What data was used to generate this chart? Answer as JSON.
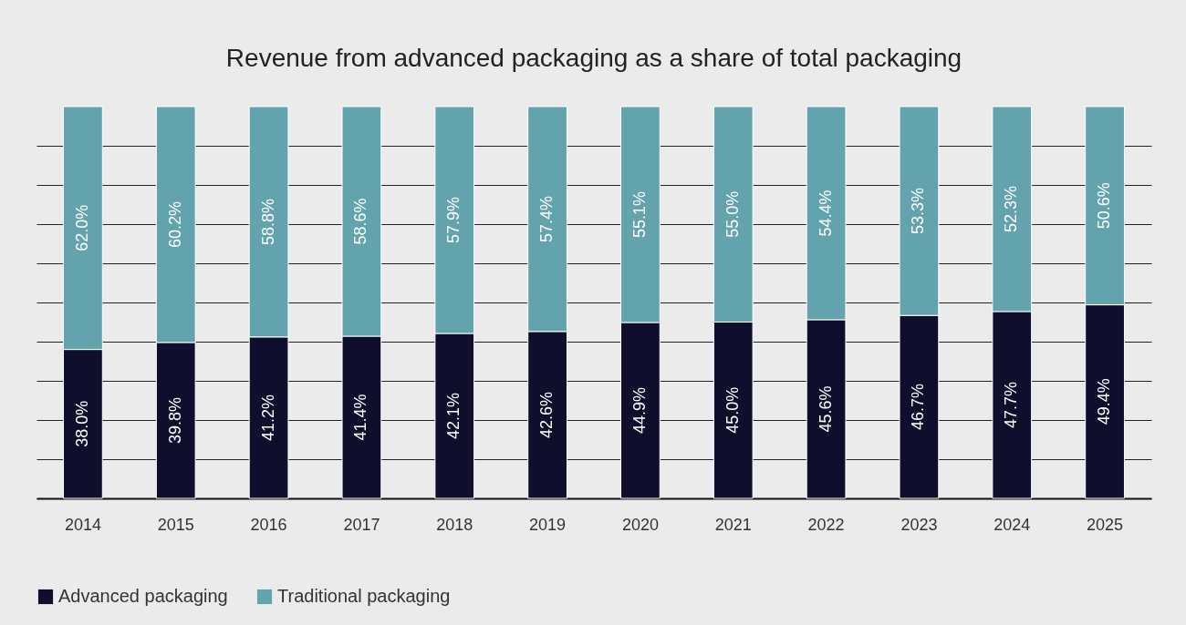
{
  "chart_data": {
    "type": "bar",
    "title": "Revenue from advanced packaging as a share of total packaging",
    "categories": [
      "2014",
      "2015",
      "2016",
      "2017",
      "2018",
      "2019",
      "2020",
      "2021",
      "2022",
      "2023",
      "2024",
      "2025"
    ],
    "stacked": true,
    "series": [
      {
        "name": "Advanced packaging",
        "color": "#0f0f2d",
        "values": [
          38.0,
          39.8,
          41.2,
          41.4,
          42.1,
          42.6,
          44.9,
          45.0,
          45.6,
          46.7,
          47.7,
          49.4
        ],
        "value_labels": [
          "38.0%",
          "39.8%",
          "41.2%",
          "41.4%",
          "42.1%",
          "42.6%",
          "44.9%",
          "45.0%",
          "45.6%",
          "46.7%",
          "47.7%",
          "49.4%"
        ]
      },
      {
        "name": "Traditional packaging",
        "color": "#62a3ad",
        "values": [
          62.0,
          60.2,
          58.8,
          58.6,
          57.9,
          57.4,
          55.1,
          55.0,
          54.4,
          53.3,
          52.3,
          50.6
        ],
        "value_labels": [
          "62.0%",
          "60.2%",
          "58.8%",
          "58.6%",
          "57.9%",
          "57.4%",
          "55.1%",
          "55.0%",
          "54.4%",
          "53.3%",
          "52.3%",
          "50.6%"
        ]
      }
    ],
    "ylim": [
      0,
      100
    ],
    "yticks": [
      0,
      {
        "value": 10,
        "label": null
      },
      {
        "value": 20,
        "label": null
      },
      {
        "value": 30,
        "label": null
      },
      {
        "value": 40,
        "label": null
      },
      {
        "value": 50,
        "label": null
      },
      {
        "value": 60,
        "label": null
      },
      {
        "value": 70,
        "label": null
      },
      {
        "value": 80,
        "label": null
      },
      {
        "value": 90,
        "label": null
      }
    ],
    "grid": "y",
    "tick_labels": "x",
    "legend": "bottom"
  }
}
